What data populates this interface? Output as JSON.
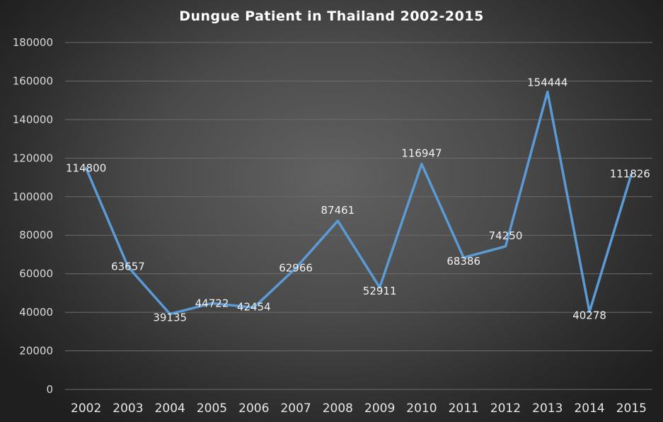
{
  "chart_data": {
    "type": "line",
    "title": "Dungue Patient in Thailand 2002-2015",
    "xlabel": "",
    "ylabel": "",
    "categories": [
      "2002",
      "2003",
      "2004",
      "2005",
      "2006",
      "2007",
      "2008",
      "2009",
      "2010",
      "2011",
      "2012",
      "2013",
      "2014",
      "2015"
    ],
    "series": [
      {
        "values": [
          114800,
          63657,
          39135,
          44722,
          42454,
          62966,
          87461,
          52911,
          116947,
          68386,
          74250,
          154444,
          40278,
          111826
        ],
        "labels": [
          "114800",
          "63657",
          "39135",
          "44722",
          "42454",
          "62966",
          "87461",
          "52911",
          "116947",
          "68386",
          "74250",
          "154444",
          "40278",
          "111826"
        ],
        "color": "#5b9bd5"
      }
    ],
    "ylim": [
      0,
      180000
    ],
    "yticks": [
      0,
      20000,
      40000,
      60000,
      80000,
      100000,
      120000,
      140000,
      160000,
      180000
    ],
    "ytick_labels": [
      "0",
      "20000",
      "40000",
      "60000",
      "80000",
      "100000",
      "120000",
      "140000",
      "160000",
      "180000"
    ],
    "grid": true,
    "legend": "none",
    "colors": {
      "background_center": "#626262",
      "background_edge": "#1f1f1f",
      "gridline": "#6b6b6b",
      "line": "#5b9bd5",
      "text": "#ffffff"
    }
  }
}
